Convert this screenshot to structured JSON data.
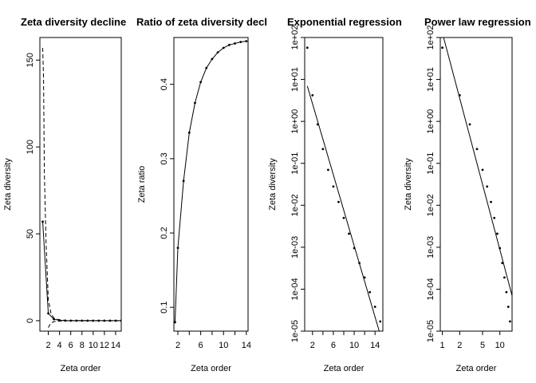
{
  "chart_data": [
    {
      "type": "line",
      "title": "Zeta diversity decline",
      "xlabel": "Zeta order",
      "ylabel": "Zeta diversity",
      "xlim": [
        0.5,
        15
      ],
      "ylim": [
        -6,
        163
      ],
      "log_x": false,
      "log_y": false,
      "x_ticks": [
        2,
        6,
        10,
        14
      ],
      "x_tick_labels": [
        "2",
        "6",
        "10",
        "14"
      ],
      "x_ticks_minor": [
        4,
        8,
        12
      ],
      "x_tick_labels_minor": [
        "4",
        "8",
        "12"
      ],
      "y_ticks": [
        0,
        50,
        100,
        150
      ],
      "y_tick_labels": [
        "0",
        "50",
        "100",
        "150"
      ],
      "series": [
        {
          "style": "solid-points",
          "x": [
            1,
            2,
            3,
            4,
            5,
            6,
            7,
            8,
            9,
            10,
            11,
            12,
            13,
            14,
            15
          ],
          "y": [
            57,
            4.2,
            0.85,
            0.22,
            0.07,
            0.028,
            0.012,
            0.005,
            0.002,
            0.001,
            0.0004,
            0.0002,
            8e-05,
            4e-05,
            2e-05
          ]
        },
        {
          "style": "dashed",
          "x": [
            1,
            1.15,
            1.3,
            1.6,
            2,
            2.5,
            3,
            4,
            5,
            6,
            8,
            10,
            12,
            14,
            15
          ],
          "y": [
            157,
            140,
            85,
            45,
            12,
            4,
            1.5,
            0.5,
            0.2,
            0.05,
            0,
            0,
            0,
            0,
            0
          ]
        },
        {
          "style": "dashed",
          "x": [
            2,
            2.4,
            3,
            4,
            6,
            8,
            10,
            12,
            14,
            15
          ],
          "y": [
            -4,
            -1.5,
            -0.5,
            -0.2,
            0,
            0,
            0,
            0,
            0,
            0
          ]
        }
      ]
    },
    {
      "type": "line",
      "title": "Ratio of zeta diversity decl",
      "xlabel": "Zeta order",
      "ylabel": "Zeta ratio",
      "xlim": [
        1.3,
        14.3
      ],
      "ylim": [
        0.068,
        0.463
      ],
      "log_x": false,
      "log_y": false,
      "x_ticks": [
        2,
        4,
        6,
        8,
        10,
        12,
        14
      ],
      "x_tick_labels": [
        "2",
        "",
        "6",
        "",
        "10",
        "",
        "14"
      ],
      "y_ticks": [
        0.1,
        0.2,
        0.3,
        0.4
      ],
      "y_tick_labels": [
        "0.1",
        "0.2",
        "0.3",
        "0.4"
      ],
      "series": [
        {
          "style": "solid-points",
          "x": [
            1.5,
            2,
            3,
            4,
            5,
            6,
            7,
            8,
            9,
            10,
            11,
            12,
            13,
            14
          ],
          "y": [
            0.08,
            0.18,
            0.27,
            0.335,
            0.375,
            0.403,
            0.422,
            0.434,
            0.443,
            0.449,
            0.453,
            0.455,
            0.457,
            0.458
          ]
        }
      ]
    },
    {
      "type": "scatter",
      "title": "Exponential regression",
      "xlabel": "Zeta order",
      "ylabel": "Zeta diversity",
      "xlim": [
        0.5,
        15.5
      ],
      "ylim": [
        1e-05,
        100
      ],
      "log_x": false,
      "log_y": true,
      "x_ticks": [
        2,
        6,
        10,
        14
      ],
      "x_tick_labels": [
        "2",
        "6",
        "10",
        "14"
      ],
      "x_ticks_minor": [
        4,
        8,
        12
      ],
      "x_tick_labels_minor": [
        "",
        "",
        ""
      ],
      "y_ticks": [
        1e-05,
        0.0001,
        0.001,
        0.01,
        0.1,
        1,
        10,
        100
      ],
      "y_tick_labels": [
        "1e-05",
        "1e-04",
        "1e-03",
        "1e-02",
        "1e-01",
        "1e+00",
        "1e+01",
        "1e+02"
      ],
      "points": {
        "x": [
          1,
          2,
          3,
          4,
          5,
          6,
          7,
          8,
          9,
          10,
          11,
          12,
          13,
          14,
          15
        ],
        "y": [
          57,
          4.2,
          0.85,
          0.22,
          0.07,
          0.028,
          0.012,
          0.005,
          0.0021,
          0.00095,
          0.00042,
          0.00019,
          8.5e-05,
          3.8e-05,
          1.7e-05
        ]
      },
      "fit_line": {
        "x": [
          1,
          14.8
        ],
        "y": [
          7,
          1e-05
        ]
      }
    },
    {
      "type": "scatter",
      "title": "Power law regression",
      "xlabel": "Zeta order",
      "ylabel": "Zeta diversity",
      "xlim": [
        0.92,
        16.3
      ],
      "ylim": [
        1e-05,
        100
      ],
      "log_x": true,
      "log_y": true,
      "x_ticks": [
        1,
        2,
        5,
        10
      ],
      "x_tick_labels": [
        "1",
        "2",
        "5",
        "10"
      ],
      "y_ticks": [
        1e-05,
        0.0001,
        0.001,
        0.01,
        0.1,
        1,
        10,
        100
      ],
      "y_tick_labels": [
        "1e-05",
        "1e-04",
        "1e-03",
        "1e-02",
        "1e-01",
        "1e+00",
        "1e+01",
        "1e+02"
      ],
      "points": {
        "x": [
          1,
          2,
          3,
          4,
          5,
          6,
          7,
          8,
          9,
          10,
          11,
          12,
          13,
          14,
          15
        ],
        "y": [
          57,
          4.2,
          0.85,
          0.22,
          0.07,
          0.028,
          0.012,
          0.005,
          0.0021,
          0.00095,
          0.00042,
          0.00019,
          8.5e-05,
          3.8e-05,
          1.7e-05
        ]
      },
      "fit_line": {
        "x": [
          1.05,
          16.3
        ],
        "y": [
          100,
          7e-05
        ]
      }
    }
  ]
}
